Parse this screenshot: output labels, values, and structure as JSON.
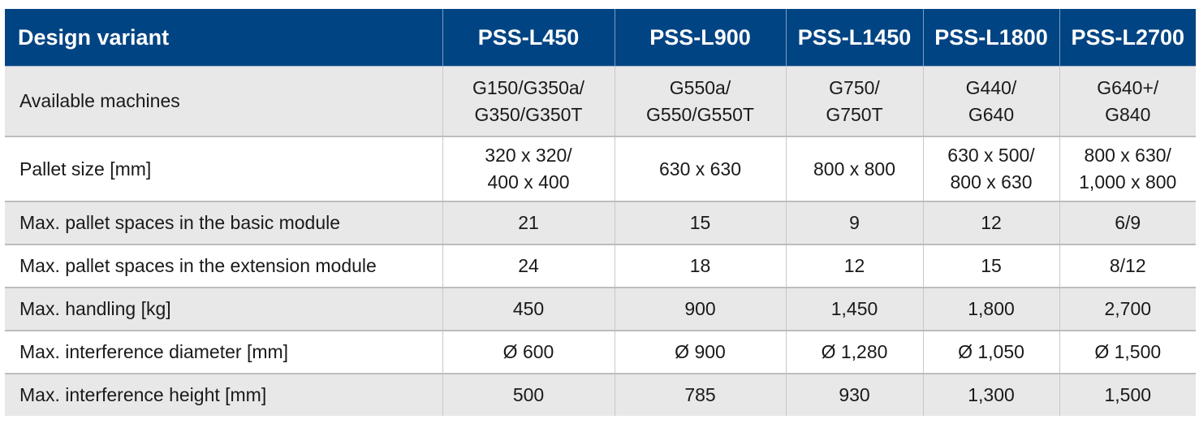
{
  "table": {
    "header": {
      "label": "Design variant",
      "variants": [
        "PSS-L450",
        "PSS-L900",
        "PSS-L1450",
        "PSS-L1800",
        "PSS-L2700"
      ]
    },
    "rows": [
      {
        "label": "Available machines",
        "cells": [
          [
            "G150/G350a/",
            "G350/G350T"
          ],
          [
            "G550a/",
            "G550/G550T"
          ],
          [
            "G750/",
            "G750T"
          ],
          [
            "G440/",
            "G640"
          ],
          [
            "G640+/",
            "G840"
          ]
        ]
      },
      {
        "label": "Pallet size [mm]",
        "cells": [
          [
            "320 x 320/",
            "400 x 400"
          ],
          [
            "630 x 630"
          ],
          [
            "800 x 800"
          ],
          [
            "630 x 500/",
            "800 x 630"
          ],
          [
            "800 x 630/",
            "1,000 x 800"
          ]
        ]
      },
      {
        "label": "Max. pallet spaces in the basic module",
        "cells": [
          "21",
          "15",
          "9",
          "12",
          "6/9"
        ]
      },
      {
        "label": "Max. pallet spaces in the extension module",
        "cells": [
          "24",
          "18",
          "12",
          "15",
          "8/12"
        ]
      },
      {
        "label": "Max. handling [kg]",
        "cells": [
          "450",
          "900",
          "1,450",
          "1,800",
          "2,700"
        ]
      },
      {
        "label": "Max. interference diameter [mm]",
        "cells": [
          "Ø 600",
          "Ø 900",
          "Ø 1,280",
          "Ø 1,050",
          "Ø 1,500"
        ]
      },
      {
        "label": "Max. interference height [mm]",
        "cells": [
          "500",
          "785",
          "930",
          "1,300",
          "1,500"
        ]
      }
    ]
  },
  "colors": {
    "header_bg": "#004483",
    "header_text": "#ffffff",
    "row_shade": "#e8e8e8",
    "row_plain": "#ffffff",
    "grid": "#bdbdbd"
  }
}
